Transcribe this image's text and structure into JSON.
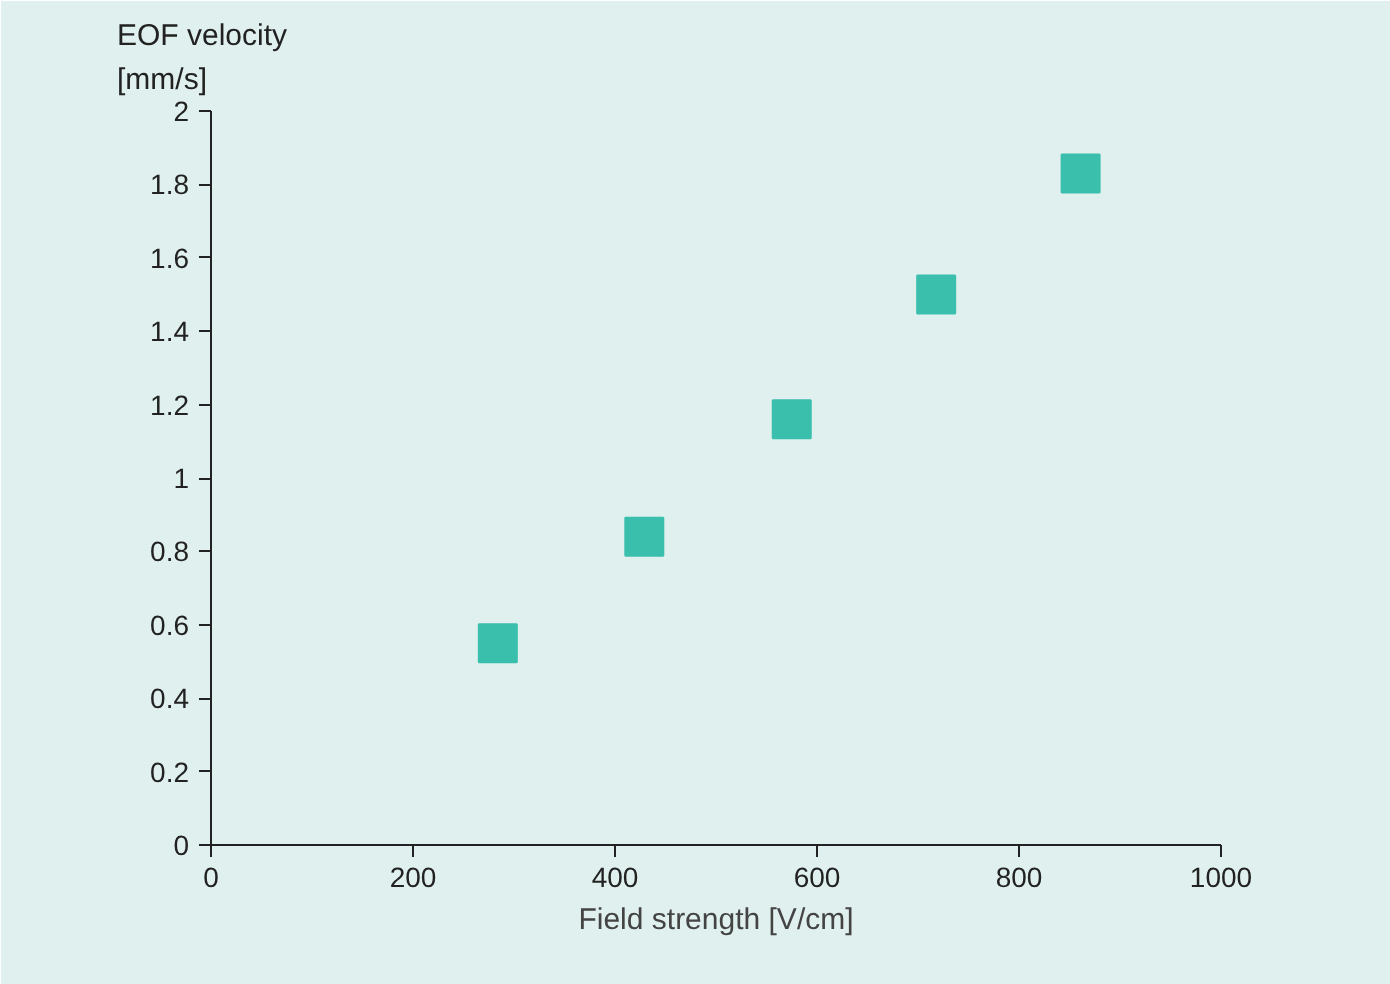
{
  "chart_data": {
    "type": "scatter",
    "ylabel": "EOF velocity\n[mm/s]",
    "xlabel": "Field strength [V/cm]",
    "x": [
      284,
      429,
      575,
      718,
      861
    ],
    "series": [
      {
        "color": "#3bbfad",
        "values": [
          0.55,
          0.84,
          1.16,
          1.5,
          1.83
        ]
      }
    ],
    "xlim": [
      0,
      1000
    ],
    "xticks": [
      0,
      200,
      400,
      600,
      800,
      1000
    ],
    "ylim": [
      0,
      2
    ],
    "yticks": [
      0,
      {
        "value": 0.2,
        "label": "0.2"
      },
      {
        "value": 0.4,
        "label": "0.4"
      },
      {
        "value": 0.6,
        "label": "0.6"
      },
      {
        "value": 0.8,
        "label": "0.8"
      },
      1,
      {
        "value": 1.2,
        "label": "1.2"
      },
      {
        "value": 1.4,
        "label": "1.4"
      },
      {
        "value": 1.6,
        "label": "1.6"
      },
      {
        "value": 1.8,
        "label": "1.8"
      },
      2
    ],
    "grid": false,
    "marker": "square"
  }
}
